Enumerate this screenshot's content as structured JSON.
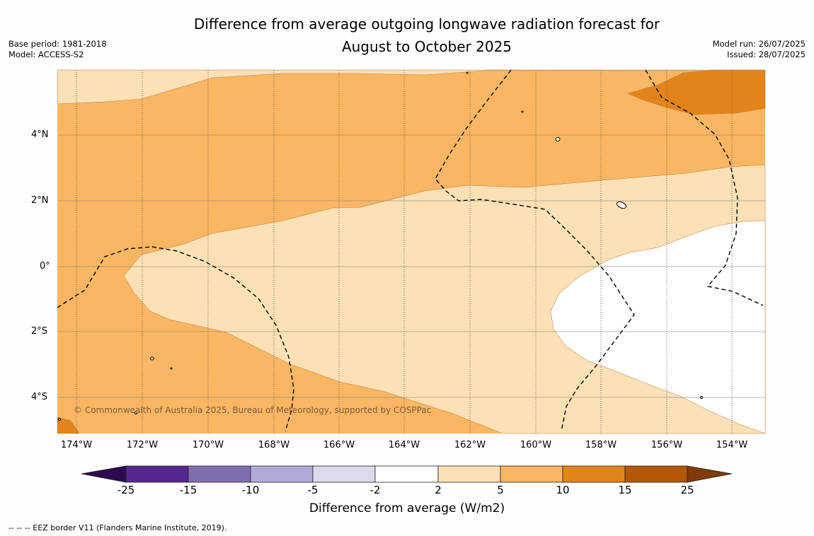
{
  "map": {
    "title_line1": "Difference from average outgoing longwave radiation forecast for",
    "title_line2": "August to October 2025",
    "base_period": "Base period: 1981-2018",
    "model": "Model: ACCESS-S2",
    "model_run": "Model run: 26/07/2025",
    "issued": "Issued: 28/07/2025",
    "copyright": "© Commonwealth of Australia 2025, Bureau of Meteorology, supported by COSPPac",
    "footer_note": "--  --  -- EEZ border V11 (Flanders Marine Institute, 2019).",
    "lat_ticks": [
      "4°N",
      "2°N",
      "0°",
      "2°S",
      "4°S"
    ],
    "lon_ticks": [
      "174°W",
      "172°W",
      "170°W",
      "168°W",
      "166°W",
      "164°W",
      "162°W",
      "160°W",
      "158°W",
      "156°W",
      "154°W"
    ]
  },
  "colorbar": {
    "label": "Difference from average (W/m2)",
    "ticks": [
      "-25",
      "-15",
      "-10",
      "-5",
      "-2",
      "2",
      "5",
      "10",
      "15",
      "25"
    ],
    "colors": {
      "below_min": "#2d0a4e",
      "bin1": "#54278f",
      "bin2": "#7f6fae",
      "bin3": "#b2aad6",
      "bin4": "#dadaeb",
      "bin5": "#ffffff",
      "bin6": "#fde0b5",
      "bin7": "#fbb663",
      "bin8": "#e3841a",
      "bin9": "#b35806",
      "above_max": "#7f3b08"
    }
  }
}
